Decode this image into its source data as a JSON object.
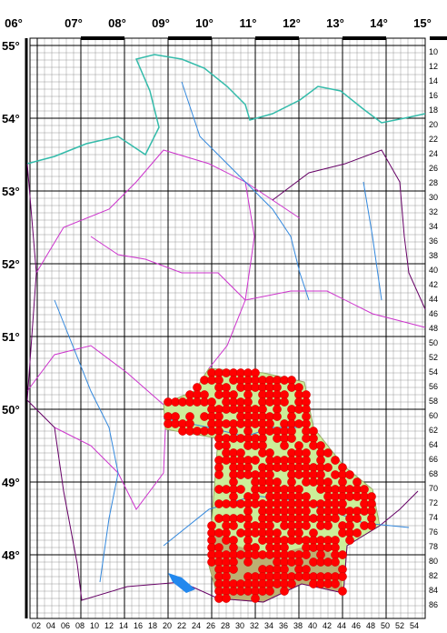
{
  "longitude_labels": [
    "06°",
    "07°",
    "08°",
    "09°",
    "10°",
    "11°",
    "12°",
    "13°",
    "14°",
    "15°"
  ],
  "latitude_labels": [
    "55°",
    "54°",
    "53°",
    "52°",
    "51°",
    "50°",
    "49°",
    "48°"
  ],
  "row_labels": [
    "10",
    "12",
    "14",
    "16",
    "18",
    "20",
    "22",
    "24",
    "26",
    "28",
    "30",
    "32",
    "34",
    "36",
    "38",
    "40",
    "42",
    "44",
    "46",
    "48",
    "50",
    "52",
    "54",
    "56",
    "58",
    "60",
    "62",
    "64",
    "66",
    "68",
    "70",
    "72",
    "74",
    "76",
    "78",
    "80",
    "82",
    "84",
    "86"
  ],
  "column_labels": [
    "02",
    "04",
    "06",
    "08",
    "10",
    "12",
    "14",
    "16",
    "18",
    "20",
    "22",
    "24",
    "26",
    "28",
    "30",
    "32",
    "34",
    "36",
    "38",
    "40",
    "42",
    "44",
    "46",
    "48",
    "50",
    "52",
    "54"
  ]
}
